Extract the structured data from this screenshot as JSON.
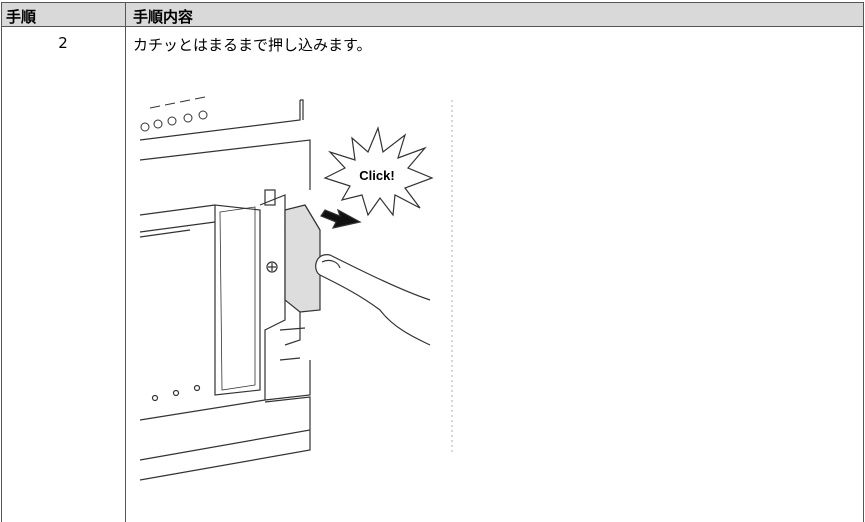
{
  "table": {
    "header": [
      "手順",
      "手順内容"
    ],
    "rows": [
      [
        "2",
        "カチッとはまるまで押し込みます。"
      ]
    ]
  },
  "illustration": {
    "callout": "Click!"
  }
}
